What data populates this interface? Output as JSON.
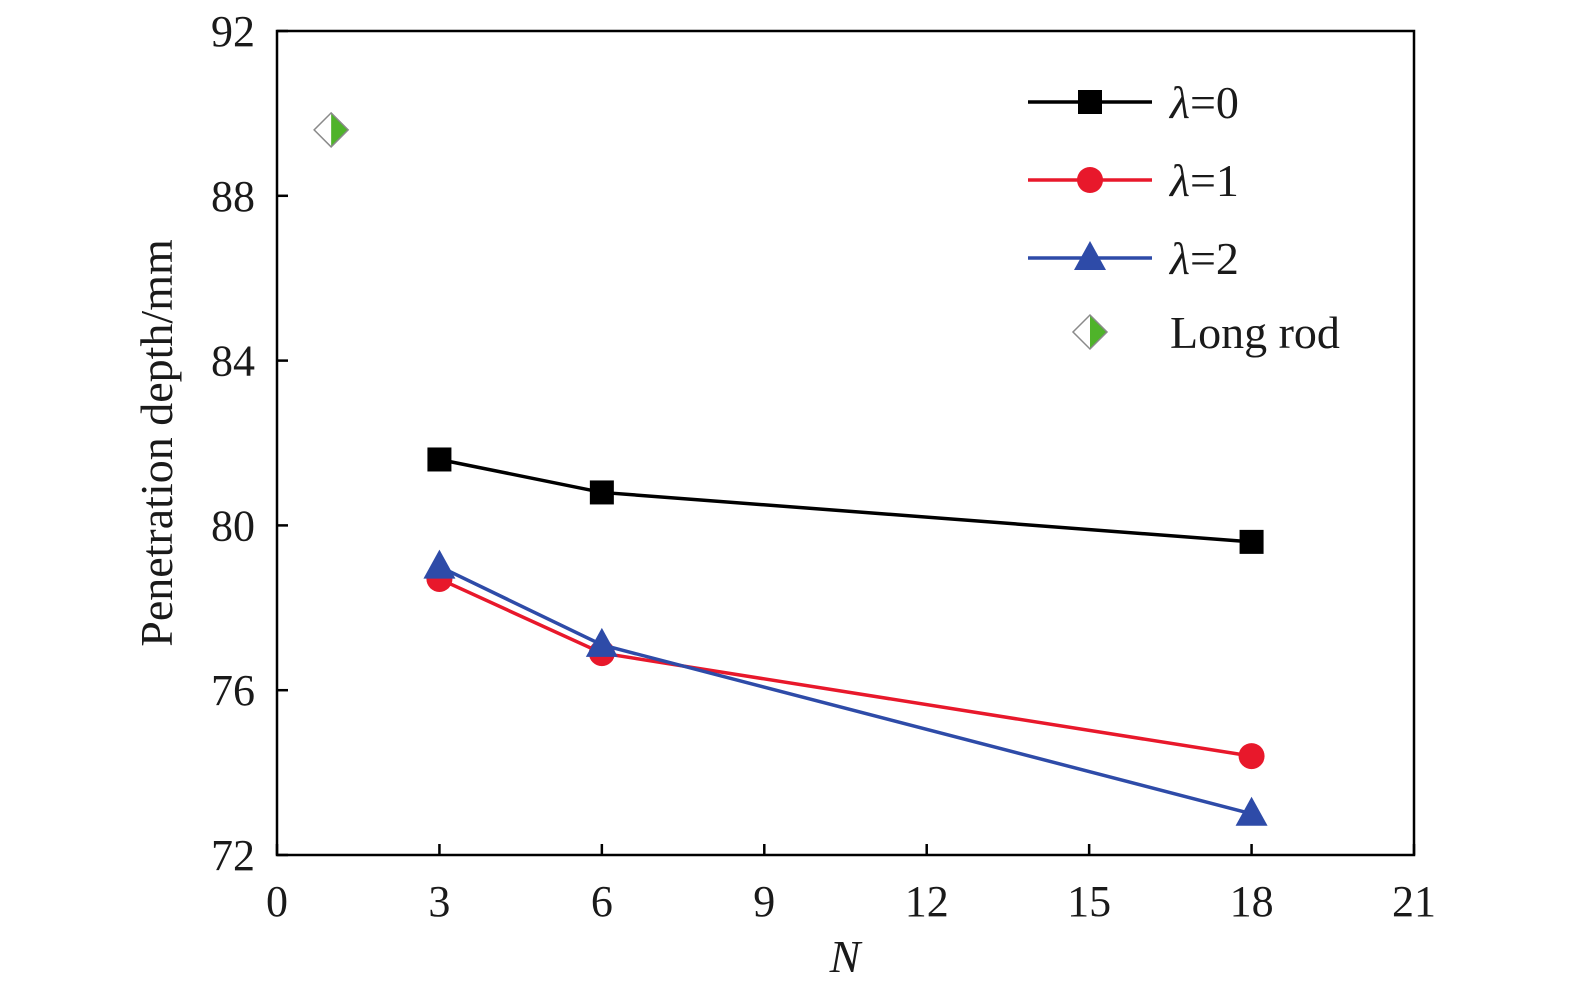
{
  "chart_data": {
    "type": "line",
    "xlabel": "N",
    "ylabel": "Penetration depth/mm",
    "xlim": [
      0,
      21
    ],
    "ylim": [
      72,
      92
    ],
    "xticks": [
      "0",
      "3",
      "6",
      "9",
      "12",
      "15",
      "18",
      "21"
    ],
    "yticks": [
      "72",
      "76",
      "80",
      "84",
      "88",
      "92"
    ],
    "grid": false,
    "legend_position": "top-right",
    "series": [
      {
        "name": "λ=0",
        "name_symbol": "λ",
        "name_suffix": "=0",
        "color": "#000000",
        "marker": "square",
        "x": [
          3,
          6,
          18
        ],
        "y": [
          81.6,
          80.8,
          79.6
        ]
      },
      {
        "name": "λ=1",
        "name_symbol": "λ",
        "name_suffix": "=1",
        "color": "#e8182b",
        "marker": "circle",
        "x": [
          3,
          6,
          18
        ],
        "y": [
          78.7,
          76.9,
          74.4
        ]
      },
      {
        "name": "λ=2",
        "name_symbol": "λ",
        "name_suffix": "=2",
        "color": "#2e4ba8",
        "marker": "triangle",
        "x": [
          3,
          6,
          18
        ],
        "y": [
          79.0,
          77.1,
          73.0
        ]
      },
      {
        "name": "Long rod",
        "name_symbol": "",
        "name_suffix": "Long rod",
        "color": "#4fb32a",
        "marker": "half-diamond",
        "x": [
          1
        ],
        "y": [
          89.6
        ]
      }
    ]
  }
}
